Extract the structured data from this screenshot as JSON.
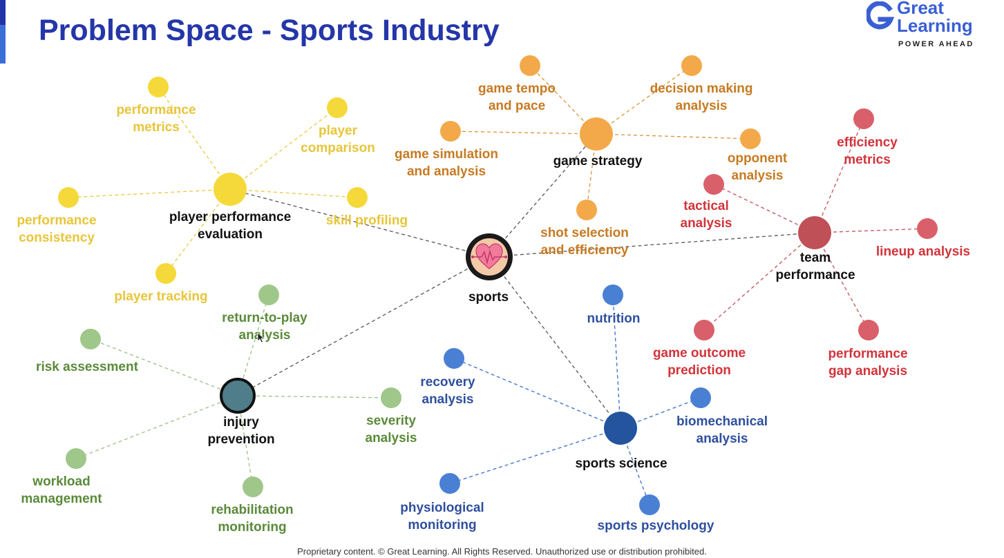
{
  "title": "Problem Space - Sports Industry",
  "logo": {
    "line1": "Great",
    "line2": "Learning",
    "tagline": "POWER AHEAD"
  },
  "footer": "Proprietary content. © Great Learning. All Rights Reserved. Unauthorized use or distribution prohibited.",
  "colors": {
    "title": "#2436a8",
    "yellow": "#f5d93a",
    "orange": "#f3a94a",
    "red": "#c9505a",
    "blue": "#3b6cc9",
    "green": "#9bc485",
    "sports_hub": "#f4c9a8"
  },
  "icons": {
    "sports": "heart-pulse-icon"
  },
  "nodes": {
    "sports": "sports",
    "ppe": "player performance evaluation",
    "ppe_children": {
      "performance_metrics": "performance metrics",
      "player_comparison": "player comparison",
      "performance_consistency": "performance consistency",
      "skill_profiling": "skill profiling",
      "player_tracking": "player tracking"
    },
    "game_strategy": "game strategy",
    "gs_children": {
      "game_tempo": "game tempo and pace",
      "decision_making": "decision making analysis",
      "game_simulation": "game simulation and analysis",
      "opponent": "opponent analysis",
      "shot_selection": "shot selection and efficiency"
    },
    "team_performance": "team performance",
    "tp_children": {
      "efficiency_metrics": "efficiency metrics",
      "tactical": "tactical analysis",
      "lineup": "lineup analysis",
      "game_outcome": "game outcome prediction",
      "performance_gap": "performance gap analysis"
    },
    "sports_science": "sports science",
    "ss_children": {
      "nutrition": "nutrition",
      "recovery": "recovery analysis",
      "biomechanical": "biomechanical analysis",
      "physiological": "physiological monitoring",
      "psychology": "sports psychology"
    },
    "injury_prevention": "injury prevention",
    "ip_children": {
      "return_to_play": "return-to-play analysis",
      "risk": "risk assessment",
      "severity": "severity analysis",
      "workload": "workload management",
      "rehabilitation": "rehabilitation monitoring"
    }
  }
}
